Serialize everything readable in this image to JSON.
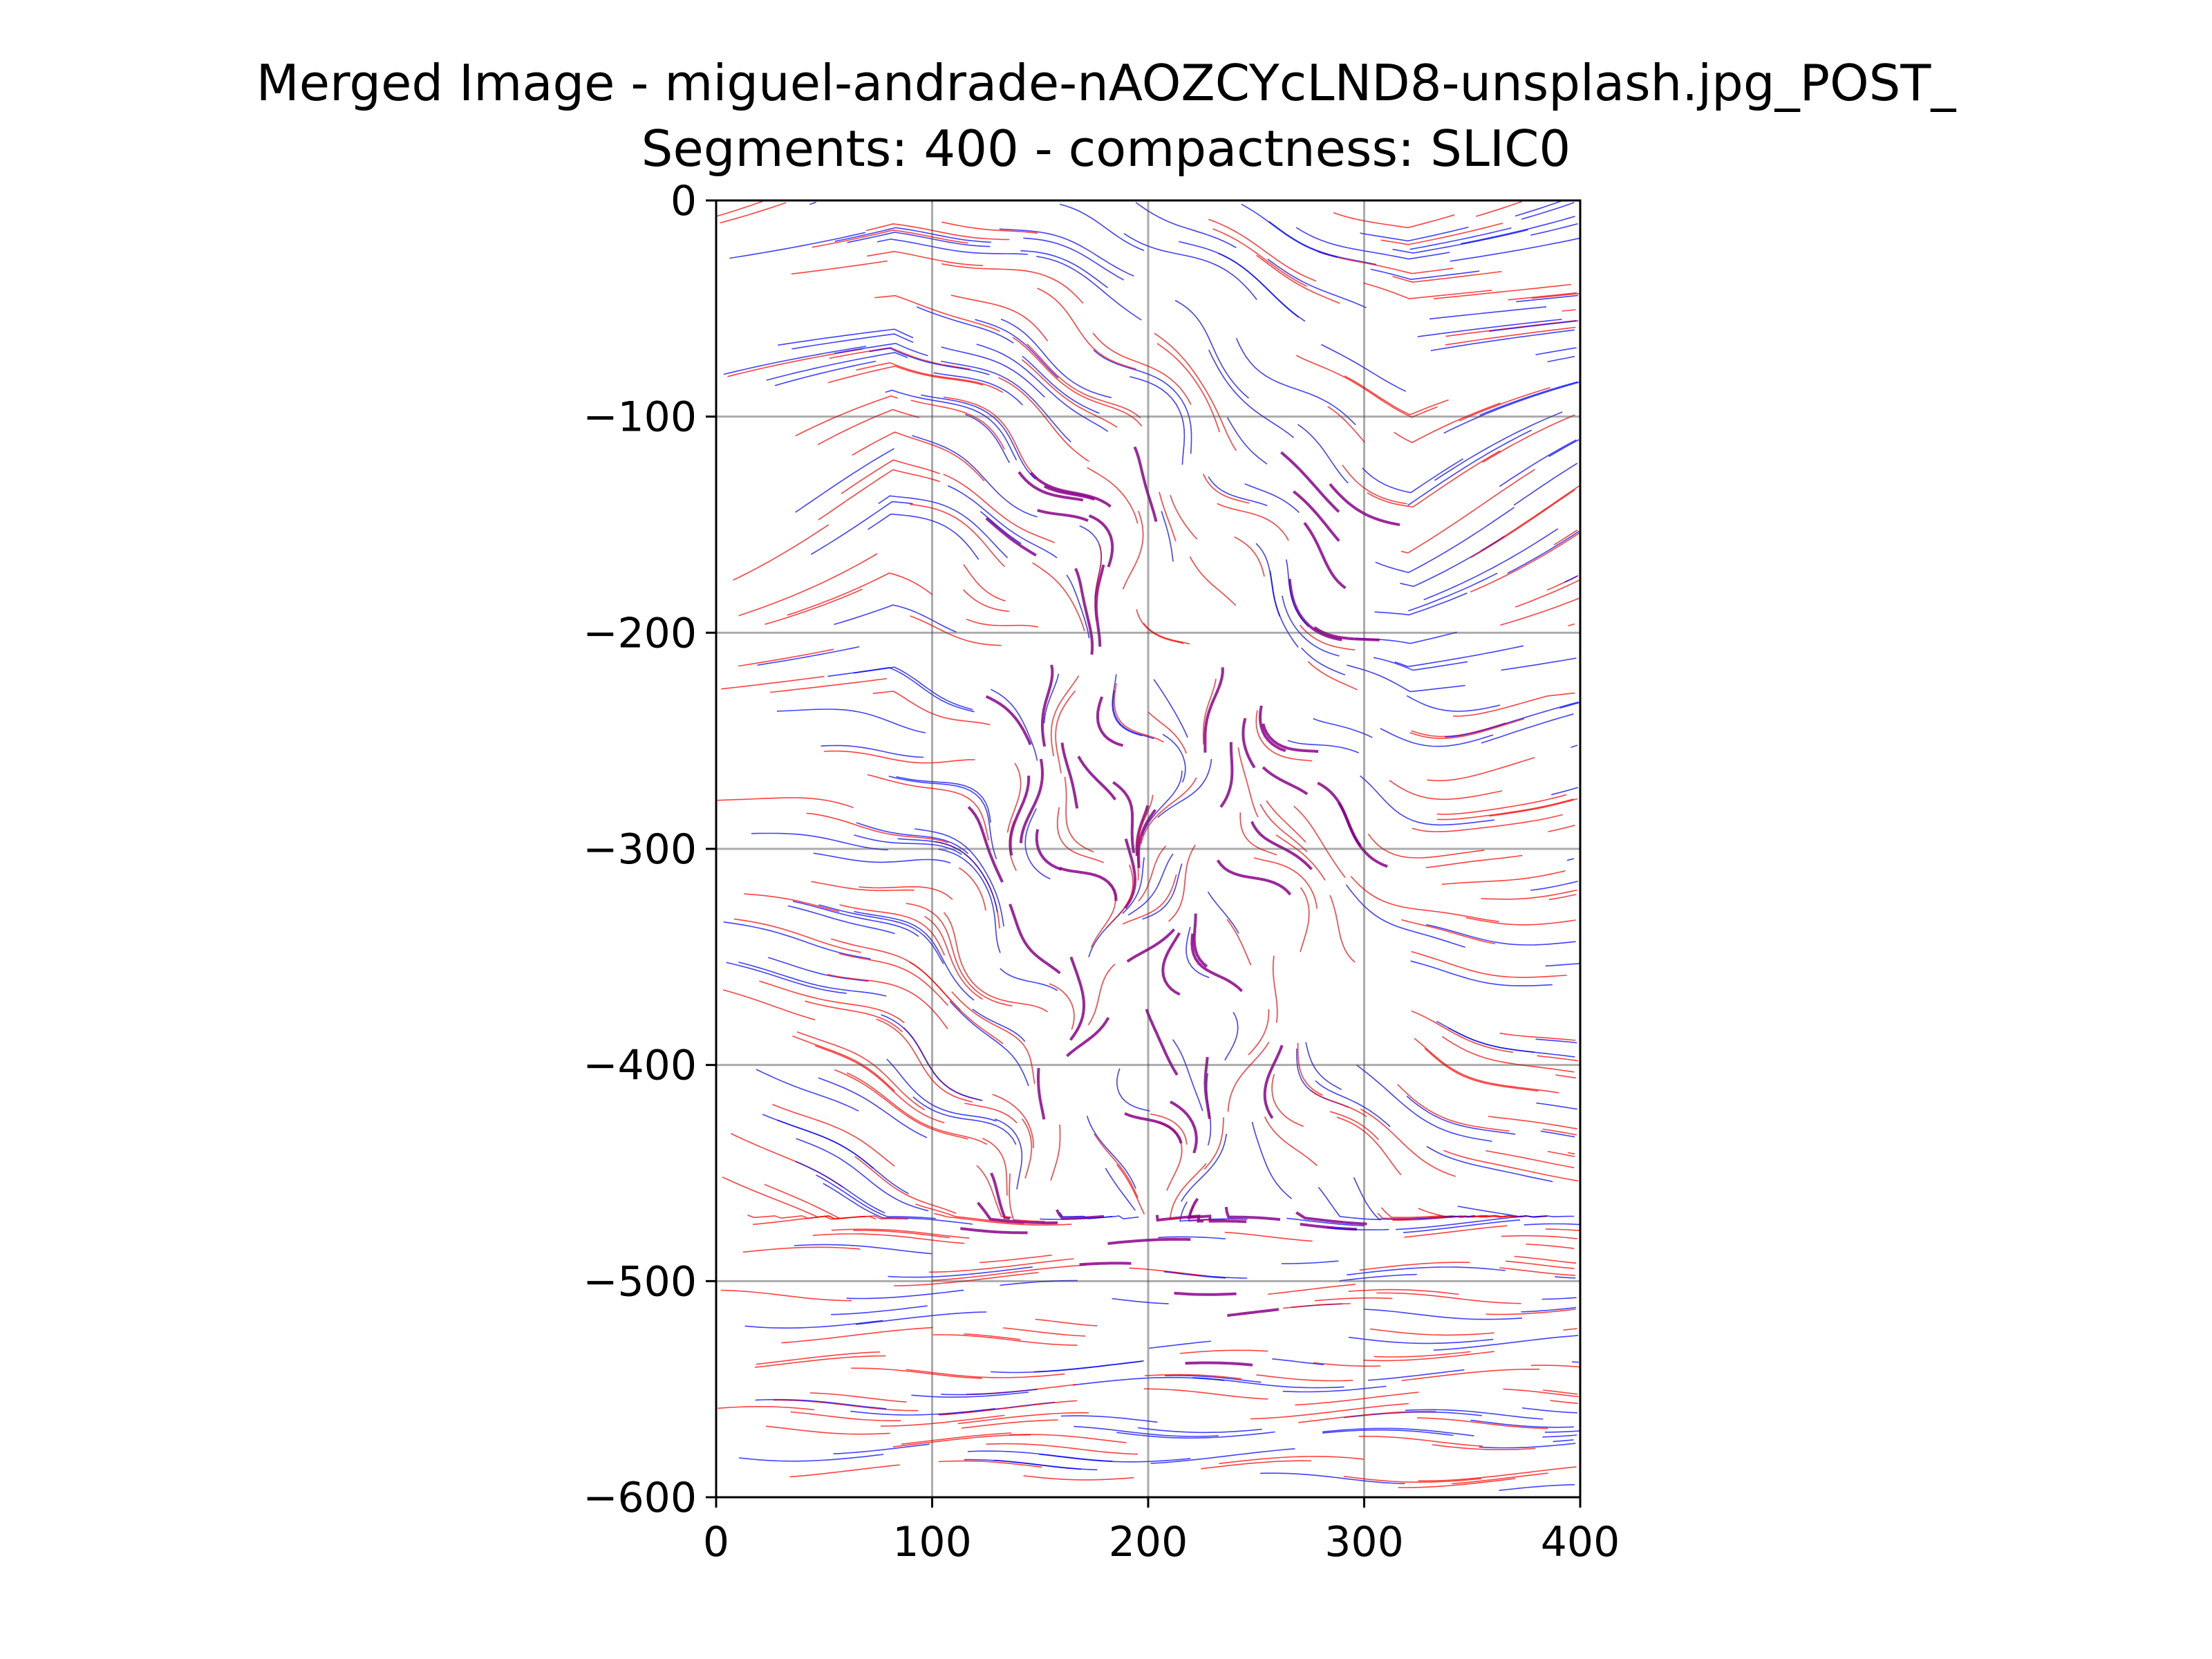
{
  "chart_data": {
    "type": "streamplot",
    "title": "Merged Image - miguel-andrade-nAOZCYcLND8-unsplash.jpg_POST_",
    "subtitle": "Segments: 400 - compactness: SLIC0",
    "xlabel": "",
    "ylabel": "",
    "xlim": [
      0,
      400
    ],
    "ylim": [
      -600,
      0
    ],
    "x_ticks": [
      0,
      100,
      200,
      300,
      400
    ],
    "y_ticks": [
      0,
      -100,
      -200,
      -300,
      -400,
      -500,
      -600
    ],
    "x_tick_labels": [
      "0",
      "100",
      "200",
      "300",
      "400"
    ],
    "y_tick_labels": [
      "0",
      "−100",
      "−200",
      "−300",
      "−400",
      "−500",
      "−600"
    ],
    "grid": true,
    "series": [
      {
        "color": "#ff0000"
      },
      {
        "color": "#0000ff"
      },
      {
        "color": "#8b008b"
      }
    ]
  }
}
